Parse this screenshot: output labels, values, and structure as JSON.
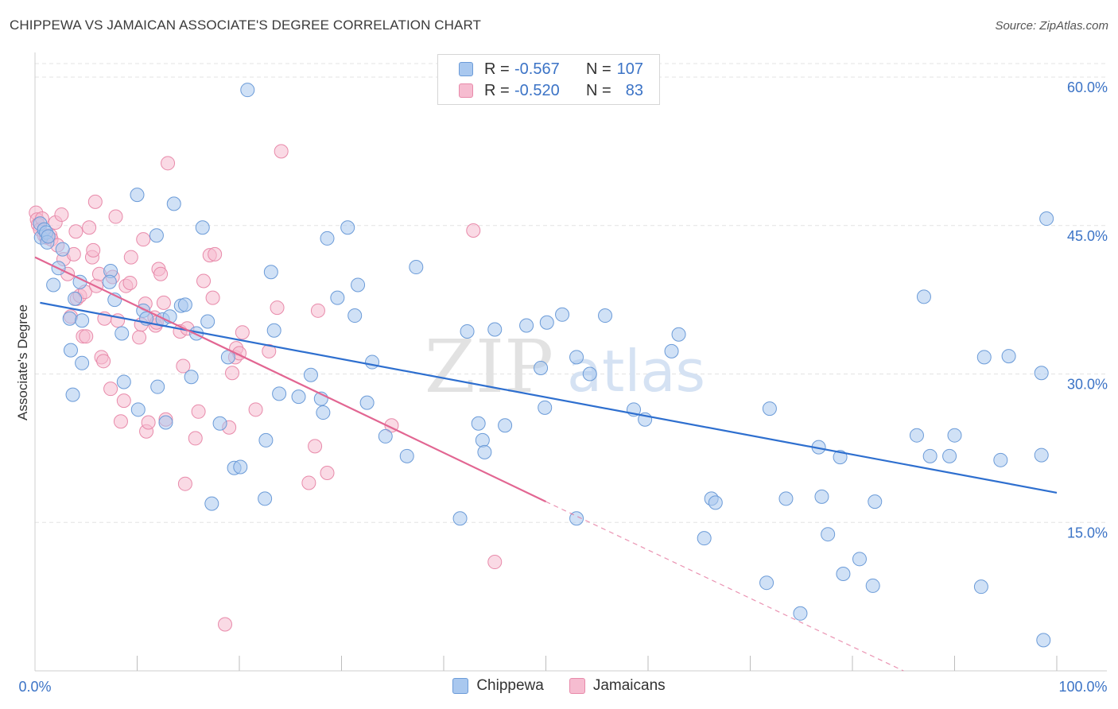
{
  "header": {
    "title": "CHIPPEWA VS JAMAICAN ASSOCIATE'S DEGREE CORRELATION CHART",
    "source": "Source: ZipAtlas.com"
  },
  "watermark": {
    "zip": "ZIP",
    "atlas": "atlas"
  },
  "legend": {
    "rows": [
      {
        "r_label": "R =",
        "r_value": "-0.567",
        "n_label": "N =",
        "n_value": "107"
      },
      {
        "r_label": "R =",
        "r_value": "-0.520",
        "n_label": "N =",
        "n_value": "83"
      }
    ],
    "bottom": [
      "Chippewa",
      "Jamaicans"
    ]
  },
  "colors": {
    "chippewa_fill": "#a9c8ef",
    "chippewa_stroke": "#6b9bd8",
    "chippewa_line": "#2e6fcf",
    "jamaican_fill": "#f6bcd0",
    "jamaican_stroke": "#e88aaa",
    "jamaican_line": "#e26692",
    "axis_text": "#3b73c6",
    "grid": "#e3e3e3"
  },
  "chart_data": {
    "type": "scatter",
    "title": "CHIPPEWA VS JAMAICAN ASSOCIATE'S DEGREE CORRELATION CHART",
    "xlabel": "",
    "ylabel": "Associate's Degree",
    "xlim": [
      0,
      100
    ],
    "ylim": [
      0,
      60
    ],
    "x_tick_labels": [
      "0.0%",
      "100.0%"
    ],
    "y_ticks": [
      15,
      30,
      45,
      60
    ],
    "y_tick_labels": [
      "15.0%",
      "30.0%",
      "45.0%",
      "60.0%"
    ],
    "grid": true,
    "legend_position": "top-center",
    "series": [
      {
        "name": "Chippewa",
        "r": -0.567,
        "n": 107,
        "trend": {
          "x0": 0.5,
          "y0": 37.2,
          "x1": 100,
          "y1": 18.0
        },
        "points": [
          [
            0.5,
            45.2
          ],
          [
            0.6,
            43.8
          ],
          [
            0.9,
            44.6
          ],
          [
            1.1,
            44.3
          ],
          [
            1.2,
            43.3
          ],
          [
            1.3,
            43.9
          ],
          [
            1.8,
            39.0
          ],
          [
            2.3,
            40.7
          ],
          [
            2.7,
            42.6
          ],
          [
            3.4,
            35.6
          ],
          [
            3.5,
            32.4
          ],
          [
            3.7,
            27.9
          ],
          [
            3.9,
            37.6
          ],
          [
            4.4,
            39.3
          ],
          [
            4.6,
            31.1
          ],
          [
            4.6,
            35.4
          ],
          [
            7.4,
            40.4
          ],
          [
            7.3,
            39.3
          ],
          [
            7.8,
            37.5
          ],
          [
            8.5,
            34.1
          ],
          [
            8.7,
            29.2
          ],
          [
            10.0,
            48.1
          ],
          [
            10.1,
            26.4
          ],
          [
            10.6,
            36.4
          ],
          [
            10.9,
            35.6
          ],
          [
            11.9,
            44.0
          ],
          [
            12.0,
            28.7
          ],
          [
            12.5,
            35.5
          ],
          [
            12.8,
            25.1
          ],
          [
            13.2,
            35.8
          ],
          [
            13.6,
            47.2
          ],
          [
            14.3,
            36.9
          ],
          [
            14.7,
            37.0
          ],
          [
            15.3,
            29.7
          ],
          [
            15.8,
            34.1
          ],
          [
            16.4,
            44.8
          ],
          [
            16.9,
            35.3
          ],
          [
            17.3,
            16.9
          ],
          [
            18.1,
            25.0
          ],
          [
            18.9,
            31.7
          ],
          [
            19.5,
            20.5
          ],
          [
            20.1,
            20.6
          ],
          [
            20.8,
            58.7
          ],
          [
            22.5,
            17.4
          ],
          [
            22.6,
            23.3
          ],
          [
            23.1,
            40.3
          ],
          [
            23.4,
            34.4
          ],
          [
            23.9,
            28.0
          ],
          [
            25.8,
            27.7
          ],
          [
            27.0,
            29.9
          ],
          [
            28.0,
            27.5
          ],
          [
            28.2,
            26.1
          ],
          [
            28.6,
            43.7
          ],
          [
            29.6,
            37.7
          ],
          [
            30.6,
            44.8
          ],
          [
            31.3,
            35.9
          ],
          [
            31.6,
            39.0
          ],
          [
            32.5,
            27.1
          ],
          [
            33.0,
            31.2
          ],
          [
            34.3,
            23.7
          ],
          [
            36.4,
            21.7
          ],
          [
            37.3,
            40.8
          ],
          [
            41.6,
            15.4
          ],
          [
            42.3,
            34.3
          ],
          [
            43.4,
            25.0
          ],
          [
            43.8,
            23.3
          ],
          [
            44.0,
            22.1
          ],
          [
            45.0,
            34.5
          ],
          [
            46.0,
            24.8
          ],
          [
            48.1,
            34.9
          ],
          [
            49.5,
            30.6
          ],
          [
            49.9,
            26.6
          ],
          [
            50.1,
            35.2
          ],
          [
            51.6,
            36.0
          ],
          [
            53.0,
            31.7
          ],
          [
            53.0,
            15.4
          ],
          [
            54.3,
            30.0
          ],
          [
            55.8,
            35.9
          ],
          [
            58.6,
            26.4
          ],
          [
            59.7,
            25.4
          ],
          [
            62.3,
            32.3
          ],
          [
            63.0,
            34.0
          ],
          [
            65.5,
            13.4
          ],
          [
            66.2,
            17.4
          ],
          [
            66.6,
            17.0
          ],
          [
            71.9,
            26.5
          ],
          [
            71.6,
            8.9
          ],
          [
            73.5,
            17.4
          ],
          [
            74.9,
            5.8
          ],
          [
            76.7,
            22.6
          ],
          [
            77.0,
            17.6
          ],
          [
            77.6,
            13.8
          ],
          [
            78.8,
            21.6
          ],
          [
            79.1,
            9.8
          ],
          [
            80.7,
            11.3
          ],
          [
            82.0,
            8.6
          ],
          [
            82.2,
            17.1
          ],
          [
            86.3,
            23.8
          ],
          [
            87.0,
            37.8
          ],
          [
            87.6,
            21.7
          ],
          [
            89.5,
            21.7
          ],
          [
            90.0,
            23.8
          ],
          [
            92.6,
            8.5
          ],
          [
            92.9,
            31.7
          ],
          [
            94.5,
            21.3
          ],
          [
            95.3,
            31.8
          ],
          [
            98.5,
            21.8
          ],
          [
            98.5,
            30.1
          ],
          [
            99.0,
            45.7
          ],
          [
            98.7,
            3.1
          ]
        ]
      },
      {
        "name": "Jamaicans",
        "r": -0.52,
        "n": 83,
        "trend": {
          "x0": 0.0,
          "y0": 41.8,
          "x1": 50.0,
          "y1": 17.1
        },
        "trend_dashed": {
          "x0": 50.0,
          "y0": 17.1,
          "x1": 85.0,
          "y1": 0.0
        },
        "points": [
          [
            0.1,
            46.3
          ],
          [
            0.2,
            45.6
          ],
          [
            0.3,
            45.1
          ],
          [
            0.5,
            44.6
          ],
          [
            0.7,
            45.7
          ],
          [
            0.9,
            44.0
          ],
          [
            1.1,
            43.8
          ],
          [
            1.3,
            43.9
          ],
          [
            1.5,
            44.0
          ],
          [
            1.6,
            43.6
          ],
          [
            2.0,
            45.3
          ],
          [
            2.2,
            43.0
          ],
          [
            2.6,
            46.1
          ],
          [
            2.8,
            41.6
          ],
          [
            3.2,
            40.1
          ],
          [
            3.5,
            35.8
          ],
          [
            3.8,
            42.1
          ],
          [
            4.0,
            44.4
          ],
          [
            4.1,
            37.6
          ],
          [
            4.4,
            37.9
          ],
          [
            4.9,
            38.3
          ],
          [
            4.7,
            33.8
          ],
          [
            5.0,
            33.8
          ],
          [
            5.3,
            44.8
          ],
          [
            5.6,
            41.8
          ],
          [
            5.7,
            42.5
          ],
          [
            5.9,
            47.4
          ],
          [
            6.0,
            38.9
          ],
          [
            6.3,
            40.1
          ],
          [
            6.5,
            31.7
          ],
          [
            6.7,
            31.3
          ],
          [
            6.8,
            35.6
          ],
          [
            7.4,
            28.5
          ],
          [
            7.6,
            39.8
          ],
          [
            7.9,
            45.9
          ],
          [
            8.1,
            35.4
          ],
          [
            8.4,
            25.2
          ],
          [
            8.7,
            27.3
          ],
          [
            8.9,
            38.9
          ],
          [
            9.3,
            39.2
          ],
          [
            9.4,
            41.8
          ],
          [
            10.2,
            33.7
          ],
          [
            10.4,
            35.0
          ],
          [
            10.6,
            43.6
          ],
          [
            10.8,
            37.1
          ],
          [
            10.9,
            24.2
          ],
          [
            11.1,
            25.1
          ],
          [
            11.7,
            35.7
          ],
          [
            11.8,
            34.9
          ],
          [
            11.9,
            35.2
          ],
          [
            12.1,
            40.6
          ],
          [
            12.3,
            40.1
          ],
          [
            12.6,
            37.2
          ],
          [
            12.8,
            25.4
          ],
          [
            13.0,
            51.3
          ],
          [
            14.2,
            34.3
          ],
          [
            14.5,
            30.8
          ],
          [
            14.7,
            18.9
          ],
          [
            14.9,
            34.6
          ],
          [
            15.7,
            23.5
          ],
          [
            16.0,
            26.2
          ],
          [
            16.5,
            39.4
          ],
          [
            17.1,
            42.0
          ],
          [
            17.4,
            37.7
          ],
          [
            17.6,
            42.1
          ],
          [
            18.6,
            4.7
          ],
          [
            19.0,
            24.6
          ],
          [
            19.3,
            30.1
          ],
          [
            19.6,
            31.7
          ],
          [
            19.7,
            32.6
          ],
          [
            20.0,
            32.1
          ],
          [
            20.3,
            34.2
          ],
          [
            21.6,
            26.4
          ],
          [
            22.9,
            32.3
          ],
          [
            23.7,
            36.7
          ],
          [
            24.1,
            52.5
          ],
          [
            26.8,
            19.0
          ],
          [
            27.4,
            22.7
          ],
          [
            27.7,
            36.4
          ],
          [
            28.6,
            20.0
          ],
          [
            34.9,
            24.8
          ],
          [
            42.9,
            44.5
          ],
          [
            45.0,
            11.0
          ]
        ]
      }
    ]
  }
}
